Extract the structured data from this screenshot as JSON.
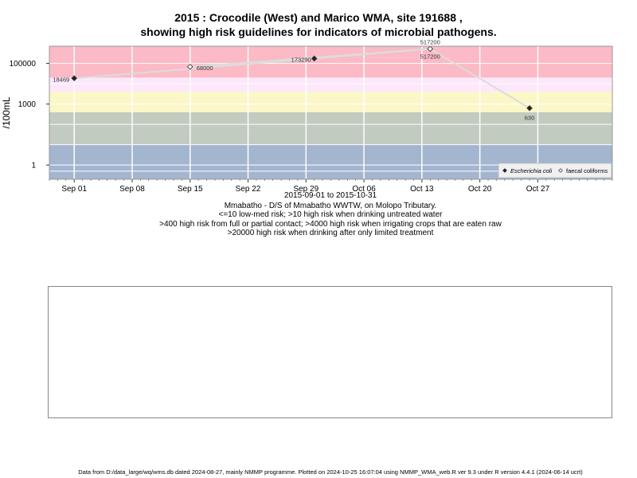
{
  "title_line1": "2015 : Crocodile (West) and Marico WMA, site 191688 ,",
  "title_line2": "showing high risk guidelines for indicators of microbial pathogens.",
  "caption": {
    "date_range": "2015-09-01 to 2015-10-31",
    "site": "Mmabatho - D/S of Mmabatho WWTW, on Molopo Tributary.",
    "risk1": "<=10 low-med risk; >10 high risk when drinking untreated water",
    "risk2": ">400 high risk from full or partial contact; >4000 high risk when irrigating crops that are eaten raw",
    "risk3": ">20000 high risk when drinking after only limited treatment"
  },
  "footer": "Data from D:/data_large/wq/wms.db dated 2024-08-27, mainly NMMP programme. Plotted on 2024-10-25 16:07:04 using NMMP_WMA_web.R ver 9.3 under R version 4.4.1 (2024-06-14 ucrt)",
  "chart_data": {
    "type": "line",
    "ylabel": "/100mL",
    "y_scale": "log",
    "ylim": [
      0.2,
      700000
    ],
    "xlim": [
      "2015-08-29",
      "2015-11-05"
    ],
    "x_ticks": [
      "Sep 01",
      "Sep 08",
      "Sep 15",
      "Sep 22",
      "Sep 29",
      "Oct 06",
      "Oct 13",
      "Oct 20",
      "Oct 27"
    ],
    "x_tick_dates": [
      "2015-09-01",
      "2015-09-08",
      "2015-09-15",
      "2015-09-22",
      "2015-09-29",
      "2015-10-06",
      "2015-10-13",
      "2015-10-20",
      "2015-10-27"
    ],
    "y_ticks": [
      "1",
      "1000",
      "100000"
    ],
    "y_tick_values": [
      1,
      1000,
      100000
    ],
    "grid": true,
    "risk_bands": [
      {
        "from": 0.2,
        "to": 10,
        "color": "#a3b5cf"
      },
      {
        "from": 10,
        "to": 400,
        "color": "#c2cbbf"
      },
      {
        "from": 400,
        "to": 4000,
        "color": "#fbf7c7"
      },
      {
        "from": 4000,
        "to": 20000,
        "color": "#fde7fb"
      },
      {
        "from": 20000,
        "to": 700000,
        "color": "#fbbac5"
      }
    ],
    "legend_position": "bottom-right",
    "legend": [
      "Escherichia coli",
      "faecal coliforms"
    ],
    "series": [
      {
        "name": "Escherichia coli",
        "marker": "filled-diamond",
        "points": [
          {
            "x": "2015-09-01",
            "y": 18469,
            "label": "18469"
          },
          {
            "x": "2015-09-30",
            "y": 173290,
            "label": "173290"
          },
          {
            "x": "2015-10-14",
            "y": 517200,
            "label": "517200"
          },
          {
            "x": "2015-10-26",
            "y": 630,
            "label": "630"
          }
        ]
      },
      {
        "name": "faecal coliforms",
        "marker": "open-diamond",
        "points": [
          {
            "x": "2015-09-15",
            "y": 68000,
            "label": "68000"
          },
          {
            "x": "2015-10-14",
            "y": 517200,
            "label": "517200"
          }
        ]
      }
    ]
  }
}
